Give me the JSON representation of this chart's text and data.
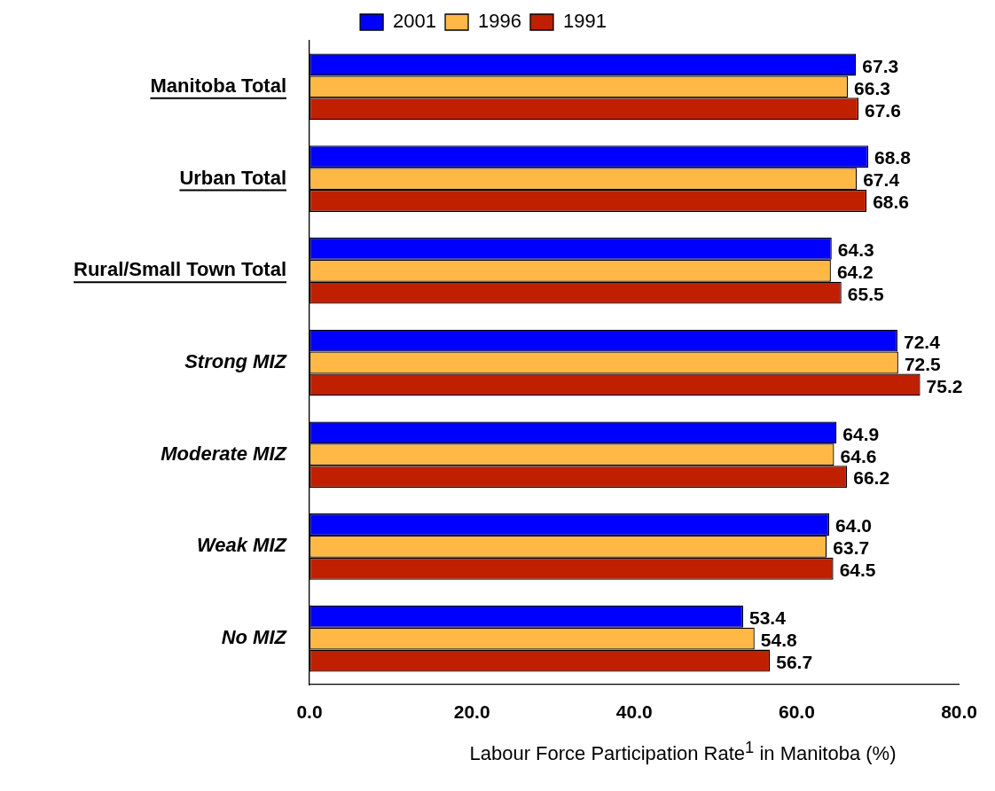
{
  "chart_data": {
    "type": "bar",
    "orientation": "horizontal",
    "xlabel": "Labour Force Participation Rate$^{1}$ in Manitoba (%)",
    "categories": [
      "Manitoba Total",
      "Urban Total",
      "Rural/Small Town Total",
      "Strong MIZ",
      "Moderate MIZ",
      "Weak MIZ",
      "No MIZ"
    ],
    "series": [
      {
        "name": "2001",
        "color": "#0000ff",
        "values": [
          67.3,
          68.8,
          64.3,
          72.4,
          64.9,
          64.0,
          53.4
        ],
        "value_labels": [
          "67.3",
          "68.8",
          "64.3",
          "72.4",
          "64.9",
          "64.0",
          "53.4"
        ]
      },
      {
        "name": "1996",
        "color": "#ffb846",
        "values": [
          66.3,
          67.4,
          64.2,
          72.5,
          64.6,
          63.7,
          54.8
        ],
        "value_labels": [
          "66.3",
          "67.4",
          "64.2",
          "72.5",
          "64.6",
          "63.7",
          "54.8"
        ]
      },
      {
        "name": "1991",
        "color": "#c02000",
        "values": [
          67.6,
          68.6,
          65.5,
          75.2,
          66.2,
          64.5,
          56.7
        ],
        "value_labels": [
          "67.6",
          "68.6",
          "65.5",
          "75.2",
          "66.2",
          "64.5",
          "56.7"
        ]
      }
    ],
    "xlim": [
      0,
      80
    ],
    "xticks": [
      {
        "value": 0,
        "label": "0.0"
      },
      {
        "value": 20,
        "label": "20.0"
      },
      {
        "value": 40,
        "label": "40.0"
      },
      {
        "value": 60,
        "label": "60.0"
      },
      {
        "value": 80,
        "label": "80.0"
      }
    ],
    "grid": false,
    "legend": "top"
  }
}
